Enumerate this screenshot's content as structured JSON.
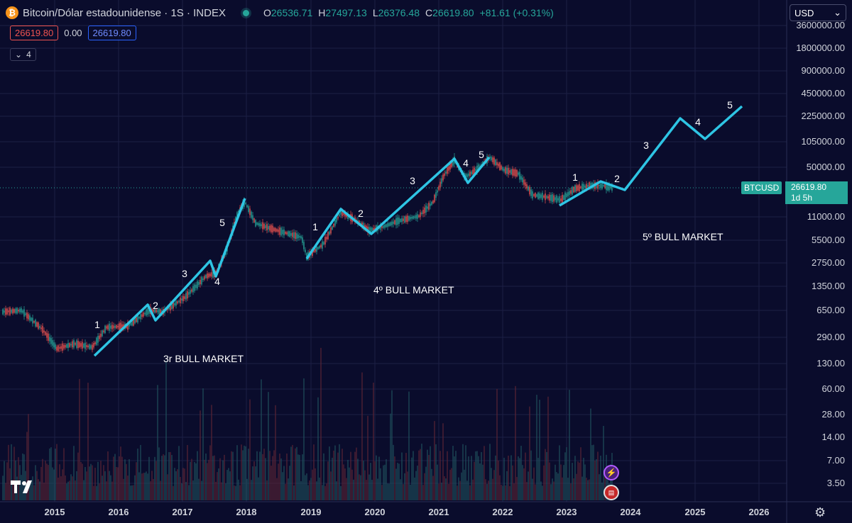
{
  "header": {
    "coin_symbol": "₿",
    "title": "Bitcoin/Dólar estadounidense · 1S · INDEX",
    "ohlc": {
      "o_label": "O",
      "o_value": "26536.71",
      "h_label": "H",
      "h_value": "27497.13",
      "l_label": "L",
      "l_value": "26376.48",
      "c_label": "C",
      "c_value": "26619.80",
      "change": "+81.61 (+0.31%)"
    }
  },
  "price_row": {
    "bid": "26619.80",
    "spread": "0.00",
    "ask": "26619.80"
  },
  "indicators_toggle": {
    "icon": "chevron-down-icon",
    "count": "4"
  },
  "currency_select": {
    "value": "USD"
  },
  "price_axis": {
    "labels": [
      "3600000.00",
      "1800000.00",
      "900000.00",
      "450000.00",
      "225000.00",
      "105000.00",
      "50000.00",
      "11000.00",
      "5500.00",
      "2750.00",
      "1350.00",
      "650.00",
      "290.00",
      "130.00",
      "60.00",
      "28.00",
      "14.00",
      "7.00",
      "3.50"
    ]
  },
  "time_axis": {
    "labels": [
      "2015",
      "2016",
      "2017",
      "2018",
      "2019",
      "2020",
      "2021",
      "2022",
      "2023",
      "2024",
      "2025",
      "2026"
    ]
  },
  "last_price_tag": {
    "symbol": "BTCUSD",
    "price": "26619.80",
    "countdown": "1d 5h"
  },
  "annotations": {
    "markets": [
      "3r BULL MARKET",
      "4º BULL MARKET",
      "5º BULL MARKET"
    ],
    "waves": [
      "1",
      "2",
      "3",
      "4",
      "5",
      "1",
      "2",
      "3",
      "4",
      "5",
      "1",
      "2",
      "3",
      "4",
      "5"
    ]
  },
  "colors": {
    "background": "#0a0c2c",
    "wave_line": "#2ec5e4",
    "up": "#26a69a",
    "down": "#ef5350",
    "grid": "#1c1f45"
  },
  "icons": {
    "settings": "gear-icon",
    "flash": "lightning-icon",
    "flag": "us-flag-icon",
    "logo": "tradingview-logo"
  }
}
